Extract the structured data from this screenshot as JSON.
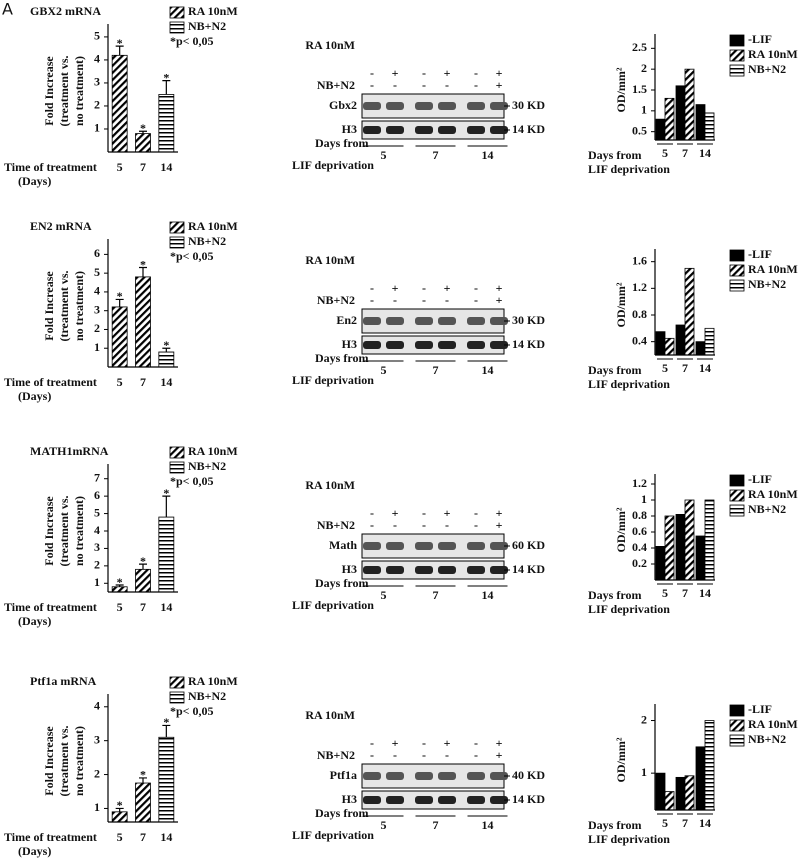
{
  "panel_label": "A",
  "chart_data": [
    {
      "type": "bar",
      "title": "GBX2 mRNA",
      "y_label": [
        "Fold Increase",
        "(treatment vs.",
        "no treatment)"
      ],
      "x_label": [
        "Time of treatment",
        "(Days)"
      ],
      "categories": [
        "5",
        "7",
        "14"
      ],
      "series": [
        {
          "name": "RA 10nM",
          "pattern": "diagonal",
          "color": "#000000",
          "values": [
            4.2,
            0.8,
            null
          ],
          "errors": [
            0.4,
            0.1,
            null
          ]
        },
        {
          "name": "NB+N2",
          "pattern": "horizontal",
          "color": "#000000",
          "values": [
            null,
            null,
            2.5
          ],
          "errors": [
            null,
            null,
            0.6
          ]
        }
      ],
      "annotation": "*p< 0,05",
      "significance_marker": "*",
      "ylim": [
        0,
        5.3
      ],
      "yticks": [
        1,
        2,
        3,
        4,
        5
      ]
    },
    {
      "type": "bar",
      "y_label": [
        "OD/mm²"
      ],
      "x_label": [
        "Days from",
        "LIF deprivation"
      ],
      "categories": [
        "5",
        "7",
        "14"
      ],
      "series": [
        {
          "name": "-LIF",
          "pattern": "solid",
          "color": "#000000",
          "values": [
            0.8,
            1.6,
            1.15
          ]
        },
        {
          "name": "RA 10nM",
          "pattern": "diagonal",
          "color": "#000000",
          "values": [
            1.3,
            2.0,
            null
          ]
        },
        {
          "name": "NB+N2",
          "pattern": "horizontal",
          "color": "#000000",
          "values": [
            null,
            null,
            0.95
          ]
        }
      ],
      "ylim": [
        0.3,
        2.7
      ],
      "yticks": [
        0.5,
        1,
        1.5,
        2,
        2.5
      ]
    },
    {
      "type": "bar",
      "title": "EN2 mRNA",
      "y_label": [
        "Fold Increase",
        "(treatment vs.",
        "no treatment)"
      ],
      "x_label": [
        "Time of treatment",
        "(Days)"
      ],
      "categories": [
        "5",
        "7",
        "14"
      ],
      "series": [
        {
          "name": "RA 10nM",
          "pattern": "diagonal",
          "color": "#000000",
          "values": [
            3.2,
            4.8,
            null
          ],
          "errors": [
            0.4,
            0.5,
            null
          ]
        },
        {
          "name": "NB+N2",
          "pattern": "horizontal",
          "color": "#000000",
          "values": [
            null,
            null,
            0.8
          ],
          "errors": [
            null,
            null,
            0.2
          ]
        }
      ],
      "annotation": "*p< 0,05",
      "significance_marker": "*",
      "ylim": [
        0,
        6.5
      ],
      "yticks": [
        1,
        2,
        3,
        4,
        5,
        6
      ]
    },
    {
      "type": "bar",
      "y_label": [
        "OD/mm²"
      ],
      "x_label": [
        "Days from",
        "LIF deprivation"
      ],
      "categories": [
        "5",
        "7",
        "14"
      ],
      "series": [
        {
          "name": "-LIF",
          "pattern": "solid",
          "color": "#000000",
          "values": [
            0.55,
            0.65,
            0.4
          ]
        },
        {
          "name": "RA 10nM",
          "pattern": "diagonal",
          "color": "#000000",
          "values": [
            0.45,
            1.5,
            null
          ]
        },
        {
          "name": "NB+N2",
          "pattern": "horizontal",
          "color": "#000000",
          "values": [
            null,
            null,
            0.6
          ]
        }
      ],
      "ylim": [
        0.2,
        1.7
      ],
      "yticks": [
        0.4,
        0.8,
        1.2,
        1.6
      ]
    },
    {
      "type": "bar",
      "title": "MATH1mRNA",
      "y_label": [
        "Fold Increase",
        "(treatment vs.",
        "no treatment)"
      ],
      "x_label": [
        "Time of treatment",
        "(Days)"
      ],
      "categories": [
        "5",
        "7",
        "14"
      ],
      "series": [
        {
          "name": "RA 10nM",
          "pattern": "diagonal",
          "color": "#000000",
          "values": [
            0.8,
            1.8,
            null
          ],
          "errors": [
            0.1,
            0.3,
            null
          ]
        },
        {
          "name": "NB+N2",
          "pattern": "horizontal",
          "color": "#000000",
          "values": [
            null,
            null,
            4.8
          ],
          "errors": [
            null,
            null,
            1.2
          ]
        }
      ],
      "annotation": "*p< 0,05",
      "significance_marker": "*",
      "ylim": [
        0.5,
        7.5
      ],
      "yticks": [
        1,
        2,
        3,
        4,
        5,
        6,
        7
      ]
    },
    {
      "type": "bar",
      "y_label": [
        "OD/mm²"
      ],
      "x_label": [
        "Days from",
        "LIF deprivation"
      ],
      "categories": [
        "5",
        "7",
        "14"
      ],
      "series": [
        {
          "name": "-LIF",
          "pattern": "solid",
          "color": "#000000",
          "values": [
            0.42,
            0.82,
            0.55
          ]
        },
        {
          "name": "RA 10nM",
          "pattern": "diagonal",
          "color": "#000000",
          "values": [
            0.8,
            1.0,
            null
          ]
        },
        {
          "name": "NB+N2",
          "pattern": "horizontal",
          "color": "#000000",
          "values": [
            null,
            null,
            1.0
          ]
        }
      ],
      "ylim": [
        0,
        1.25
      ],
      "yticks": [
        0.2,
        0.4,
        0.6,
        0.8,
        1,
        1.2
      ]
    },
    {
      "type": "bar",
      "title": "Ptf1a mRNA",
      "y_label": [
        "Fold Increase",
        "(treatment vs.",
        "no treatment)"
      ],
      "x_label": [
        "Time of treatment",
        "(Days)"
      ],
      "categories": [
        "5",
        "7",
        "14"
      ],
      "series": [
        {
          "name": "RA 10nM",
          "pattern": "diagonal",
          "color": "#000000",
          "values": [
            0.9,
            1.75,
            null
          ],
          "errors": [
            0.1,
            0.15,
            null
          ]
        },
        {
          "name": "NB+N2",
          "pattern": "horizontal",
          "color": "#000000",
          "values": [
            null,
            null,
            3.1
          ],
          "errors": [
            null,
            null,
            0.35
          ]
        }
      ],
      "annotation": "*p< 0,05",
      "significance_marker": "*",
      "ylim": [
        0.6,
        4.2
      ],
      "yticks": [
        1,
        2,
        3,
        4
      ]
    },
    {
      "type": "bar",
      "y_label": [
        "OD/mm²"
      ],
      "x_label": [
        "Days from",
        "LIF deprivation"
      ],
      "categories": [
        "5",
        "7",
        "14"
      ],
      "series": [
        {
          "name": "-LIF",
          "pattern": "solid",
          "color": "#000000",
          "values": [
            1.0,
            0.92,
            1.5
          ]
        },
        {
          "name": "RA 10nM",
          "pattern": "diagonal",
          "color": "#000000",
          "values": [
            0.65,
            0.95,
            null
          ]
        },
        {
          "name": "NB+N2",
          "pattern": "horizontal",
          "color": "#000000",
          "values": [
            null,
            null,
            2.0
          ]
        }
      ],
      "ylim": [
        0.3,
        2.2
      ],
      "yticks": [
        1,
        2
      ]
    }
  ],
  "blots": [
    {
      "treatments": [
        "RA 10nM",
        "NB+N2"
      ],
      "ra_signs": [
        "-",
        "+",
        "-",
        "+",
        "-",
        "+"
      ],
      "nb_signs": [
        "-",
        "-",
        "-",
        "-",
        "-",
        "+"
      ],
      "bands": [
        {
          "protein": "Gbx2",
          "size": "30 KD"
        },
        {
          "protein": "H3",
          "size": "14 KD"
        }
      ],
      "x_label": [
        "Days from",
        "LIF deprivation"
      ],
      "days": [
        "5",
        "7",
        "14"
      ]
    },
    {
      "treatments": [
        "RA 10nM",
        "NB+N2"
      ],
      "ra_signs": [
        "-",
        "+",
        "-",
        "+",
        "-",
        "+"
      ],
      "nb_signs": [
        "-",
        "-",
        "-",
        "-",
        "-",
        "+"
      ],
      "bands": [
        {
          "protein": "En2",
          "size": "30 KD"
        },
        {
          "protein": "H3",
          "size": "14 KD"
        }
      ],
      "x_label": [
        "Days from",
        "LIF deprivation"
      ],
      "days": [
        "5",
        "7",
        "14"
      ]
    },
    {
      "treatments": [
        "RA 10nM",
        "NB+N2"
      ],
      "ra_signs": [
        "-",
        "+",
        "-",
        "+",
        "-",
        "+"
      ],
      "nb_signs": [
        "-",
        "-",
        "-",
        "-",
        "-",
        "+"
      ],
      "bands": [
        {
          "protein": "Math",
          "size": "60 KD"
        },
        {
          "protein": "H3",
          "size": "14 KD"
        }
      ],
      "x_label": [
        "Days from",
        "LIF deprivation"
      ],
      "days": [
        "5",
        "7",
        "14"
      ]
    },
    {
      "treatments": [
        "RA 10nM",
        "NB+N2"
      ],
      "ra_signs": [
        "-",
        "+",
        "-",
        "+",
        "-",
        "+"
      ],
      "nb_signs": [
        "-",
        "-",
        "-",
        "-",
        "-",
        "+"
      ],
      "bands": [
        {
          "protein": "Ptf1a",
          "size": "40 KD"
        },
        {
          "protein": "H3",
          "size": "14 KD"
        }
      ],
      "x_label": [
        "Days from",
        "LIF deprivation"
      ],
      "days": [
        "5",
        "7",
        "14"
      ]
    }
  ]
}
